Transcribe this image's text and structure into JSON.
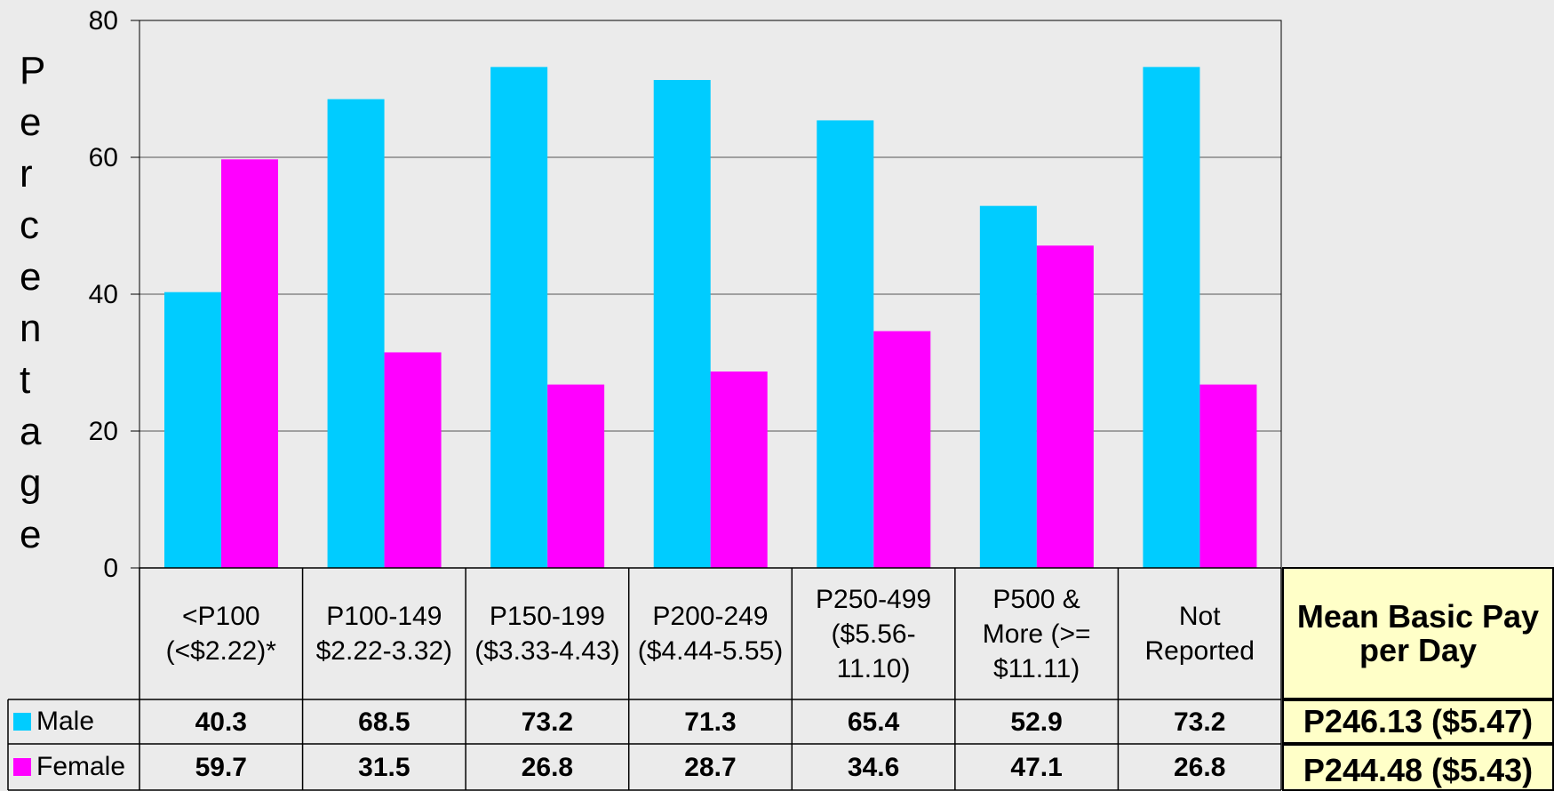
{
  "chart_data": {
    "type": "bar",
    "ylabel": "Percentage",
    "ylim": [
      0,
      80
    ],
    "yticks": [
      0,
      20,
      40,
      60,
      80
    ],
    "grid": true,
    "categories": [
      "<P100 (<$2.22)*",
      "P100-149 $2.22-3.32)",
      "P150-199 ($3.33-4.43)",
      "P200-249 ($4.44-5.55)",
      "P250-499 ($5.56-11.10)",
      "P500 & More (>= $11.11)",
      "Not Reported"
    ],
    "category_lines": [
      [
        "<P100",
        "(<$2.22)*"
      ],
      [
        "P100-149",
        "$2.22-3.32)"
      ],
      [
        "P150-199",
        "($3.33-4.43)"
      ],
      [
        "P200-249",
        "($4.44-5.55)"
      ],
      [
        "P250-499",
        "($5.56-",
        "11.10)"
      ],
      [
        "P500 &",
        "More (>=",
        "$11.11)"
      ],
      [
        "Not",
        "Reported"
      ]
    ],
    "series": [
      {
        "name": "Male",
        "color": "#00ccff",
        "values": [
          40.3,
          68.5,
          73.2,
          71.3,
          65.4,
          52.9,
          73.2
        ]
      },
      {
        "name": "Female",
        "color": "#ff00ff",
        "values": [
          59.7,
          31.5,
          26.8,
          28.7,
          34.6,
          47.1,
          26.8
        ]
      }
    ],
    "value_labels": [
      [
        "40.3",
        "68.5",
        "73.2",
        "71.3",
        "65.4",
        "52.9",
        "73.2"
      ],
      [
        "59.7",
        "31.5",
        "26.8",
        "28.7",
        "34.6",
        "47.1",
        "26.8"
      ]
    ],
    "legend": "data-table"
  },
  "mean_pay": {
    "header": "Mean Basic Pay per Day",
    "male": "P246.13 ($5.47)",
    "female": "P244.48 ($5.43)"
  }
}
